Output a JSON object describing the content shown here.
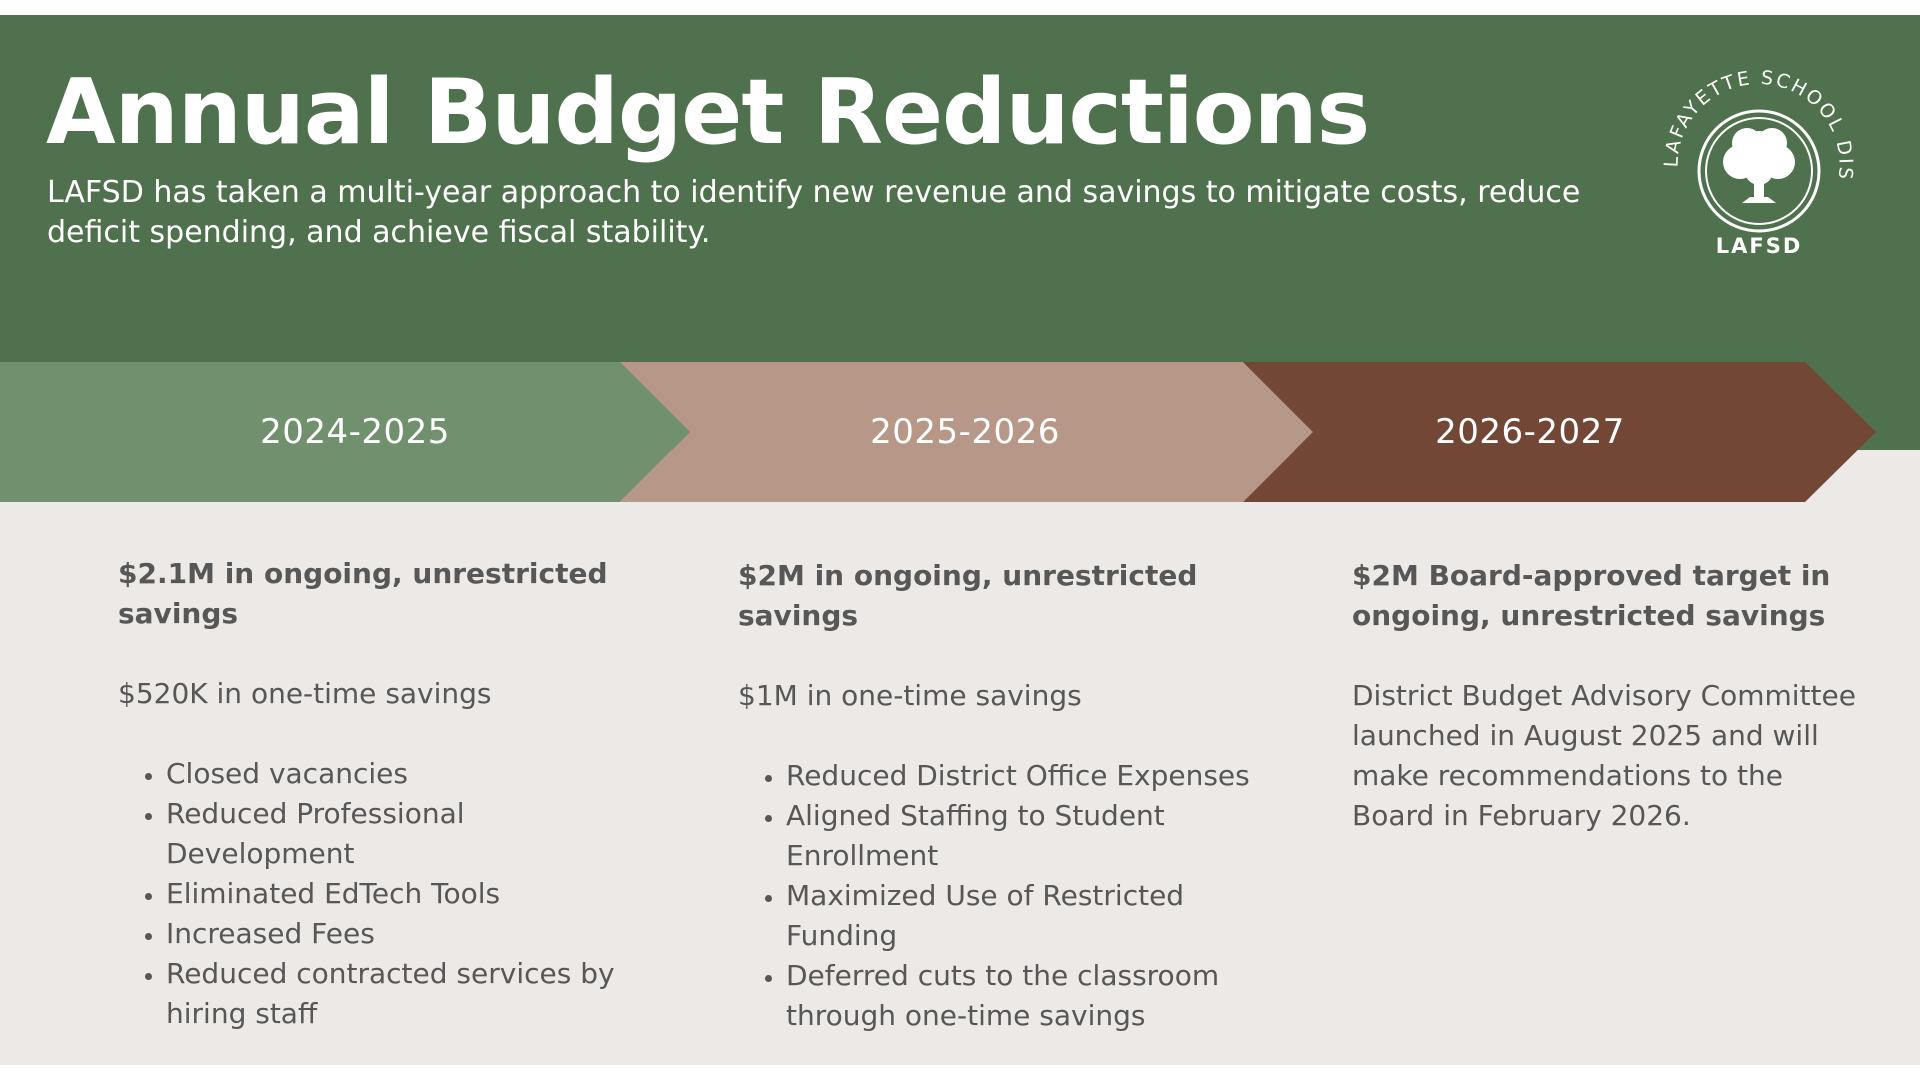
{
  "header": {
    "title": "Annual Budget Reductions",
    "subtitle": "LAFSD has taken a multi-year approach to identify new revenue and savings to mitigate costs, reduce deficit spending, and achieve fiscal stability."
  },
  "logo": {
    "icon": "oak-tree-seal",
    "arc_text": "LAFAYETTE SCHOOL DISTRICT",
    "monogram": "LAFSD"
  },
  "timeline": {
    "years": [
      {
        "label": "2024-2025",
        "color": "#71916e"
      },
      {
        "label": "2025-2026",
        "color": "#b79788"
      },
      {
        "label": "2026-2027",
        "color": "#724736"
      }
    ]
  },
  "columns": [
    {
      "heading": "$2.1M in ongoing, unrestricted savings",
      "text": "$520K in one-time savings",
      "bullets": [
        "Closed vacancies",
        "Reduced Professional Development",
        "Eliminated EdTech Tools",
        "Increased Fees",
        "Reduced contracted services by hiring staff"
      ]
    },
    {
      "heading": "$2M in ongoing, unrestricted savings",
      "text": "$1M in one-time savings",
      "bullets": [
        "Reduced District Office Expenses",
        "Aligned Staffing to Student Enrollment",
        "Maximized Use of Restricted Funding",
        "Deferred cuts to the classroom through one-time savings"
      ]
    },
    {
      "heading": "$2M Board-approved target in ongoing, unrestricted savings",
      "text": "District Budget Advisory Committee launched in August 2025 and will make recommendations to the Board in February 2026."
    }
  ],
  "colors": {
    "header_green": "#4f714d",
    "background": "#ece9e6",
    "text_gray": "#575757"
  }
}
